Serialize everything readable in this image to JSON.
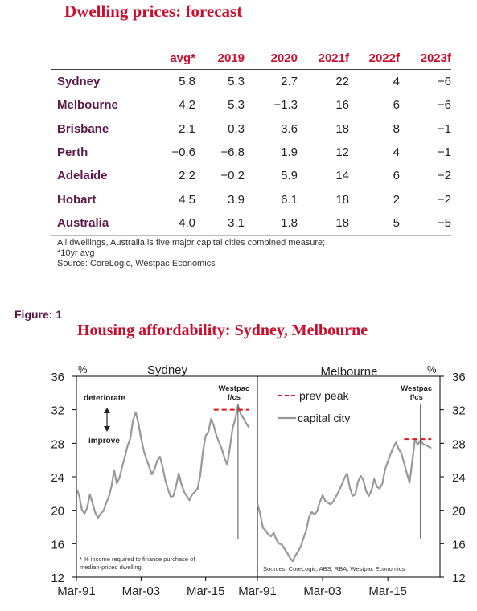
{
  "table": {
    "title": "Dwelling prices: forecast",
    "headers": [
      "avg*",
      "2019",
      "2020",
      "2021f",
      "2022f",
      "2023f"
    ],
    "rows": [
      {
        "city": "Sydney",
        "values": [
          "5.8",
          "5.3",
          "2.7",
          "22",
          "4",
          "−6"
        ]
      },
      {
        "city": "Melbourne",
        "values": [
          "4.2",
          "5.3",
          "−1.3",
          "16",
          "6",
          "−6"
        ]
      },
      {
        "city": "Brisbane",
        "values": [
          "2.1",
          "0.3",
          "3.6",
          "18",
          "8",
          "−1"
        ]
      },
      {
        "city": "Perth",
        "values": [
          "−0.6",
          "−6.8",
          "1.9",
          "12",
          "4",
          "−1"
        ]
      },
      {
        "city": "Adelaide",
        "values": [
          "2.2",
          "−0.2",
          "5.9",
          "14",
          "6",
          "−2"
        ]
      },
      {
        "city": "Hobart",
        "values": [
          "4.5",
          "3.9",
          "6.1",
          "18",
          "2",
          "−2"
        ]
      },
      {
        "city": "Australia",
        "values": [
          "4.0",
          "3.1",
          "1.8",
          "18",
          "5",
          "−5"
        ]
      }
    ],
    "notes": [
      "All dwellings, Australia is five major capital cities combined measure;",
      "*10yr avg",
      "Source: CoreLogic, Westpac Economics"
    ]
  },
  "figure": {
    "label": "Figure: 1",
    "title": "Housing affordability: Sydney, Melbourne"
  },
  "chart_data": {
    "type": "line",
    "panels": [
      {
        "name": "Sydney",
        "x_ticks": [
          "Mar-91",
          "Mar-03",
          "Mar-15"
        ],
        "y_ticks": [
          12,
          16,
          20,
          24,
          28,
          32,
          36
        ],
        "ylim": [
          12,
          36
        ],
        "y_unit": "%",
        "xlim": [
          1991.0,
          2024.6
        ],
        "series": [
          {
            "name": "capital city",
            "x": [
              1991.0,
              1991.5,
              1992.0,
              1992.5,
              1993.0,
              1993.5,
              1994.0,
              1994.5,
              1995.0,
              1995.5,
              1996.0,
              1996.5,
              1997.0,
              1997.5,
              1998.0,
              1998.5,
              1999.0,
              1999.5,
              2000.0,
              2000.5,
              2001.0,
              2001.5,
              2002.0,
              2002.5,
              2003.0,
              2003.5,
              2004.0,
              2004.5,
              2005.0,
              2005.5,
              2006.0,
              2006.5,
              2007.0,
              2007.5,
              2008.0,
              2008.5,
              2009.0,
              2009.5,
              2010.0,
              2010.5,
              2011.0,
              2011.5,
              2012.0,
              2012.5,
              2013.0,
              2013.5,
              2014.0,
              2014.5,
              2015.0,
              2015.5,
              2016.0,
              2016.5,
              2017.0,
              2017.5,
              2018.0,
              2018.5,
              2019.0,
              2019.5,
              2020.0,
              2020.5,
              2021.0,
              2021.5,
              2022.0,
              2022.5,
              2023.0
            ],
            "y": [
              22.6,
              21.8,
              20.1,
              19.6,
              20.3,
              21.9,
              20.8,
              19.7,
              19.1,
              19.6,
              19.9,
              20.8,
              21.6,
              22.8,
              24.8,
              23.2,
              23.9,
              25.2,
              26.4,
              27.7,
              28.6,
              30.7,
              31.7,
              30.4,
              28.6,
              27.1,
              26.1,
              25.2,
              24.3,
              24.9,
              25.9,
              26.4,
              25.2,
              23.6,
              22.5,
              21.6,
              21.7,
              22.9,
              24.4,
              23.1,
              22.2,
              21.7,
              21.2,
              21.9,
              22.2,
              22.6,
              24.2,
              27.1,
              28.9,
              29.4,
              30.9,
              30.1,
              28.9,
              28.1,
              27.3,
              26.2,
              25.4,
              27.5,
              29.8,
              30.9,
              32.5,
              31.5,
              31.0,
              30.4,
              29.9
            ]
          },
          {
            "name": "prev peak",
            "x": [
              2016.5,
              2023.0
            ],
            "y": [
              32.0,
              32.0
            ]
          }
        ],
        "annotations": [
          "Westpac f/cs",
          "deteriorate",
          "improve",
          "* % income required to finance purchase of median-priced dwelling."
        ]
      },
      {
        "name": "Melbourne",
        "x_ticks": [
          "Mar-91",
          "Mar-03",
          "Mar-15"
        ],
        "y_ticks": [
          12,
          16,
          20,
          24,
          28,
          32,
          36
        ],
        "ylim": [
          12,
          36
        ],
        "y_unit": "%",
        "xlim": [
          1991.0,
          2024.6
        ],
        "series": [
          {
            "name": "capital city",
            "x": [
              1991.0,
              1991.5,
              1992.0,
              1992.5,
              1993.0,
              1993.5,
              1994.0,
              1994.5,
              1995.0,
              1995.5,
              1996.0,
              1996.5,
              1997.0,
              1997.5,
              1998.0,
              1998.5,
              1999.0,
              1999.5,
              2000.0,
              2000.5,
              2001.0,
              2001.5,
              2002.0,
              2002.5,
              2003.0,
              2003.5,
              2004.0,
              2004.5,
              2005.0,
              2005.5,
              2006.0,
              2006.5,
              2007.0,
              2007.5,
              2008.0,
              2008.5,
              2009.0,
              2009.5,
              2010.0,
              2010.5,
              2011.0,
              2011.5,
              2012.0,
              2012.5,
              2013.0,
              2013.5,
              2014.0,
              2014.5,
              2015.0,
              2015.5,
              2016.0,
              2016.5,
              2017.0,
              2017.5,
              2018.0,
              2018.5,
              2019.0,
              2019.5,
              2020.0,
              2020.5,
              2021.0,
              2021.5,
              2022.0,
              2022.5,
              2023.0
            ],
            "y": [
              20.8,
              19.6,
              17.9,
              17.6,
              17.1,
              16.9,
              17.3,
              16.5,
              16.0,
              15.9,
              15.4,
              14.9,
              14.3,
              13.9,
              14.6,
              15.1,
              15.7,
              16.7,
              17.6,
              19.2,
              19.8,
              19.5,
              19.9,
              21.0,
              21.8,
              21.1,
              20.9,
              20.7,
              21.1,
              21.7,
              22.3,
              23.0,
              23.8,
              24.4,
              22.7,
              21.7,
              21.9,
              23.4,
              24.1,
              23.6,
              22.3,
              21.7,
              22.4,
              23.7,
              22.8,
              22.6,
              23.2,
              24.9,
              25.8,
              26.7,
              27.5,
              28.1,
              27.3,
              26.8,
              25.6,
              24.4,
              23.3,
              25.8,
              28.5,
              27.8,
              28.4,
              27.9,
              27.8,
              27.6,
              27.4
            ]
          },
          {
            "name": "prev peak",
            "x": [
              2018.0,
              2023.0
            ],
            "y": [
              28.5,
              28.5
            ]
          }
        ],
        "annotations": [
          "Westpac f/cs",
          "Sources: CoreLogic, ABS, RBA, Westpac Economics"
        ]
      }
    ],
    "legend": [
      {
        "name": "prev peak",
        "style": "dashed",
        "color": "#e0141e"
      },
      {
        "name": "capital city",
        "style": "solid",
        "color": "#999999"
      }
    ],
    "colors": {
      "capital_city": "#999999",
      "prev_peak": "#e0141e",
      "forecast_line": "#555555"
    }
  }
}
